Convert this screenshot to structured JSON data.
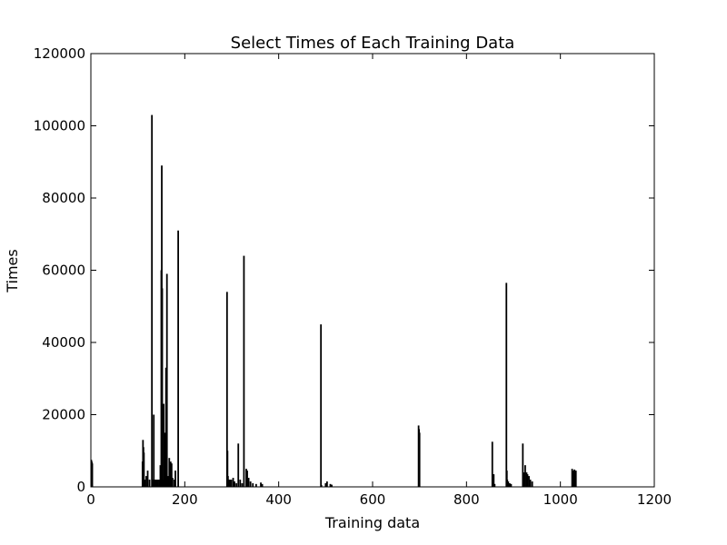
{
  "chart_data": {
    "type": "bar",
    "title": "Select Times of Each Training Data",
    "xlabel": "Training data",
    "ylabel": "Times",
    "xlim": [
      0,
      1200
    ],
    "ylim": [
      0,
      120000
    ],
    "xticks": [
      0,
      200,
      400,
      600,
      800,
      1000,
      1200
    ],
    "yticks": [
      0,
      20000,
      40000,
      60000,
      80000,
      100000,
      120000
    ],
    "grid": false,
    "legend": "none",
    "bar_color": "#000000",
    "x": [
      1,
      2,
      3,
      110,
      111,
      112,
      113,
      115,
      118,
      121,
      125,
      130,
      132,
      134,
      136,
      138,
      140,
      143,
      146,
      148,
      150,
      151,
      152,
      153,
      155,
      157,
      158,
      160,
      162,
      163,
      164,
      165,
      167,
      170,
      172,
      174,
      178,
      180,
      186,
      290,
      291,
      292,
      294,
      296,
      299,
      303,
      306,
      310,
      314,
      318,
      322,
      326,
      331,
      333,
      336,
      340,
      345,
      352,
      362,
      365,
      490,
      491,
      500,
      503,
      510,
      513,
      698,
      699,
      700,
      855,
      856,
      858,
      860,
      885,
      886,
      887,
      889,
      892,
      895,
      920,
      922,
      925,
      928,
      930,
      933,
      936,
      940,
      1025,
      1028,
      1030,
      1033
    ],
    "values": [
      7500,
      7000,
      6500,
      7000,
      13000,
      11000,
      9500,
      2000,
      3000,
      4500,
      2000,
      103000,
      2000,
      20000,
      2000,
      2000,
      2000,
      2000,
      2000,
      6000,
      60000,
      89000,
      55000,
      2000,
      23000,
      15000,
      2000,
      33000,
      59000,
      2000,
      2000,
      3000,
      8000,
      7000,
      6500,
      2500,
      2000,
      4500,
      71000,
      54000,
      10000,
      3000,
      2000,
      2000,
      2000,
      2500,
      1500,
      1000,
      12000,
      2000,
      1000,
      64000,
      5000,
      4500,
      2500,
      1500,
      1000,
      800,
      1200,
      800,
      45000,
      500,
      1000,
      1500,
      800,
      600,
      17000,
      16000,
      15000,
      12500,
      3500,
      3500,
      800,
      56500,
      4500,
      2000,
      1500,
      1000,
      800,
      12000,
      4000,
      6000,
      4000,
      3500,
      3000,
      2000,
      1500,
      5000,
      4500,
      4800,
      4500
    ]
  }
}
